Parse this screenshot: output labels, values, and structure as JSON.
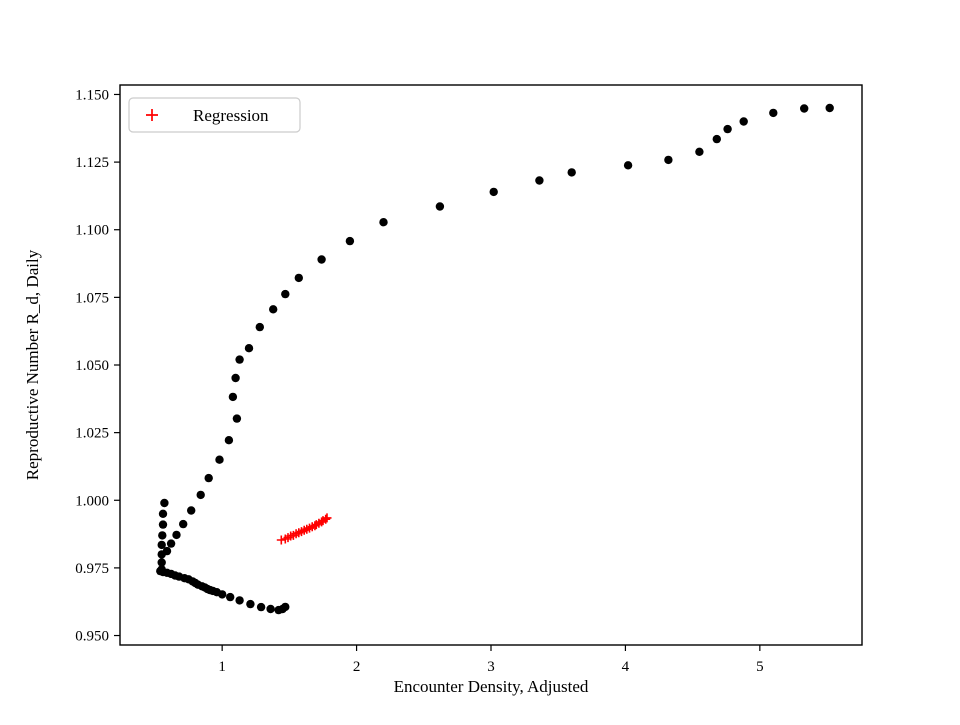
{
  "chart_data": {
    "type": "scatter",
    "title": "",
    "xlabel": "Encounter Density, Adjusted",
    "ylabel": "Reproductive Number R_d, Daily",
    "xlim": [
      0.24,
      5.76
    ],
    "ylim": [
      0.9465,
      1.1535
    ],
    "grid": false,
    "xticks": [
      {
        "value": 1,
        "label": "1"
      },
      {
        "value": 2,
        "label": "2"
      },
      {
        "value": 3,
        "label": "3"
      },
      {
        "value": 4,
        "label": "4"
      },
      {
        "value": 5,
        "label": "5"
      }
    ],
    "yticks": [
      {
        "value": 0.95,
        "label": "0.950"
      },
      {
        "value": 0.975,
        "label": "0.975"
      },
      {
        "value": 1.0,
        "label": "1.000"
      },
      {
        "value": 1.025,
        "label": "1.025"
      },
      {
        "value": 1.05,
        "label": "1.050"
      },
      {
        "value": 1.075,
        "label": "1.075"
      },
      {
        "value": 1.1,
        "label": "1.100"
      },
      {
        "value": 1.125,
        "label": "1.125"
      }
    ],
    "ytick_top": {
      "value": 1.15,
      "label": "1.150"
    },
    "legend": {
      "position": "upper-left",
      "entries": [
        "Regression"
      ]
    },
    "colors": {
      "trajectory": "#000000",
      "regression": "#ff0000",
      "spine": "#000000",
      "legend_edge": "#cccccc"
    },
    "series": [
      {
        "name": "",
        "marker": "circle",
        "color": "#000000",
        "points": [
          [
            5.52,
            1.145
          ],
          [
            5.33,
            1.1448
          ],
          [
            5.1,
            1.1432
          ],
          [
            4.88,
            1.14
          ],
          [
            4.76,
            1.1372
          ],
          [
            4.68,
            1.1335
          ],
          [
            4.55,
            1.1288
          ],
          [
            4.32,
            1.1258
          ],
          [
            4.02,
            1.1238
          ],
          [
            3.6,
            1.1212
          ],
          [
            3.36,
            1.1182
          ],
          [
            3.02,
            1.114
          ],
          [
            2.62,
            1.1086
          ],
          [
            2.2,
            1.1028
          ],
          [
            1.95,
            1.0958
          ],
          [
            1.74,
            1.089
          ],
          [
            1.57,
            1.0822
          ],
          [
            1.47,
            1.0762
          ],
          [
            1.38,
            1.0706
          ],
          [
            1.28,
            1.064
          ],
          [
            1.2,
            1.0562
          ],
          [
            1.13,
            1.052
          ],
          [
            1.1,
            1.0452
          ],
          [
            1.08,
            1.0382
          ],
          [
            1.11,
            1.0302
          ],
          [
            1.05,
            1.0222
          ],
          [
            0.98,
            1.015
          ],
          [
            0.9,
            1.0082
          ],
          [
            0.84,
            1.002
          ],
          [
            0.77,
            0.9962
          ],
          [
            0.71,
            0.9912
          ],
          [
            0.66,
            0.9872
          ],
          [
            0.62,
            0.984
          ],
          [
            0.59,
            0.9812
          ],
          [
            0.57,
            0.999
          ],
          [
            0.56,
            0.995
          ],
          [
            0.56,
            0.991
          ],
          [
            0.555,
            0.987
          ],
          [
            0.55,
            0.9835
          ],
          [
            0.55,
            0.98
          ],
          [
            0.55,
            0.977
          ],
          [
            0.55,
            0.9745
          ],
          [
            0.54,
            0.9738
          ],
          [
            0.56,
            0.9735
          ],
          [
            0.59,
            0.9732
          ],
          [
            0.62,
            0.9728
          ],
          [
            0.65,
            0.9722
          ],
          [
            0.68,
            0.9718
          ],
          [
            0.72,
            0.9712
          ],
          [
            0.75,
            0.9708
          ],
          [
            0.78,
            0.97
          ],
          [
            0.8,
            0.9694
          ],
          [
            0.82,
            0.9688
          ],
          [
            0.85,
            0.9682
          ],
          [
            0.87,
            0.9678
          ],
          [
            0.89,
            0.9672
          ],
          [
            0.91,
            0.9668
          ],
          [
            0.93,
            0.9665
          ],
          [
            0.96,
            0.966
          ],
          [
            1.0,
            0.9652
          ],
          [
            1.06,
            0.9642
          ],
          [
            1.13,
            0.963
          ],
          [
            1.21,
            0.9616
          ],
          [
            1.29,
            0.9605
          ],
          [
            1.36,
            0.9598
          ],
          [
            1.42,
            0.9594
          ],
          [
            1.45,
            0.9598
          ],
          [
            1.47,
            0.9606
          ]
        ]
      },
      {
        "name": "Regression",
        "marker": "plus",
        "color": "#ff0000",
        "points": [
          [
            1.44,
            0.9853
          ],
          [
            1.47,
            0.9857
          ],
          [
            1.49,
            0.9862
          ],
          [
            1.51,
            0.9868
          ],
          [
            1.53,
            0.987
          ],
          [
            1.55,
            0.9876
          ],
          [
            1.57,
            0.988
          ],
          [
            1.59,
            0.9884
          ],
          [
            1.61,
            0.9889
          ],
          [
            1.63,
            0.9893
          ],
          [
            1.65,
            0.9897
          ],
          [
            1.67,
            0.9902
          ],
          [
            1.69,
            0.9906
          ],
          [
            1.7,
            0.991
          ],
          [
            1.72,
            0.9915
          ],
          [
            1.74,
            0.992
          ],
          [
            1.75,
            0.9925
          ],
          [
            1.77,
            0.993
          ],
          [
            1.78,
            0.9935
          ]
        ]
      }
    ]
  }
}
